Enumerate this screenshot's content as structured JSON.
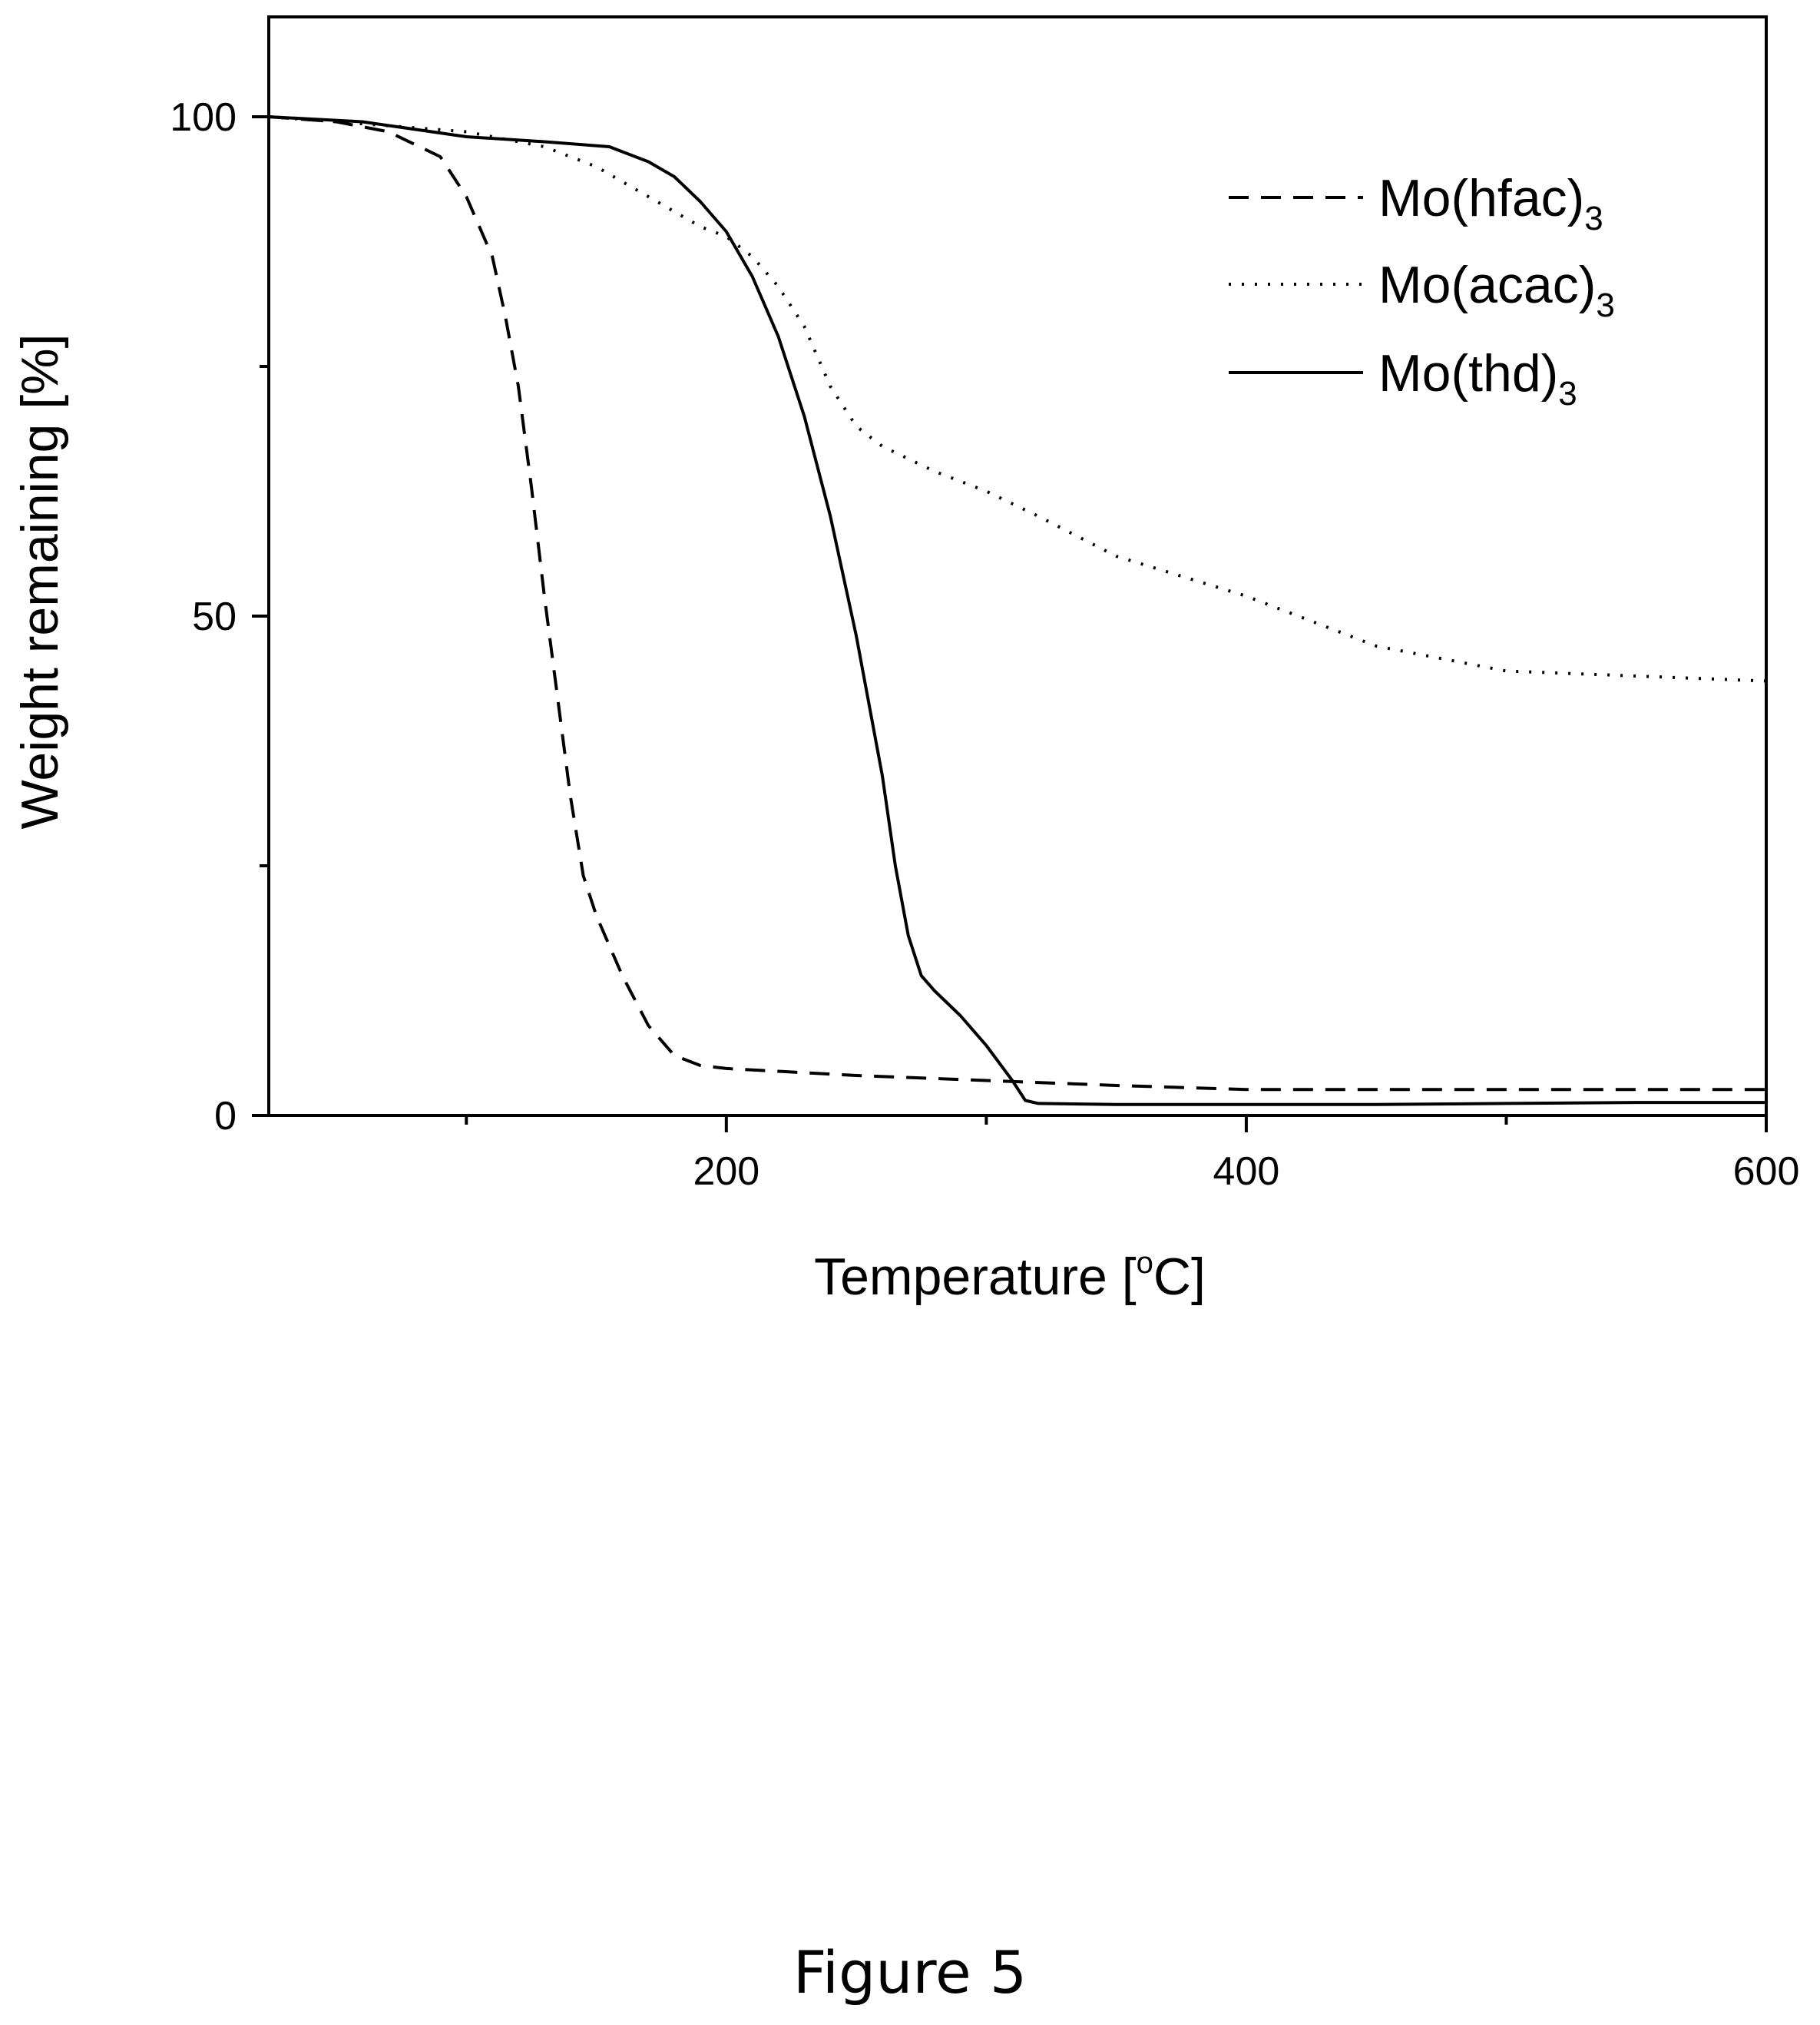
{
  "chart_data": {
    "type": "line",
    "xlabel_main": "Temperature [",
    "xlabel_sup": "o",
    "xlabel_end": "C]",
    "ylabel": "Weight remaining [%]",
    "xlim": [
      24,
      600
    ],
    "ylim": [
      0,
      110
    ],
    "x_ticks": [
      200,
      400,
      600
    ],
    "x_minor_ticks": [
      100,
      300,
      500
    ],
    "y_ticks": [
      0,
      50,
      100
    ],
    "y_minor_ticks": [
      25,
      75
    ],
    "grid": false,
    "legend_position": "top-right",
    "series": [
      {
        "name": "Mo(hfac)",
        "name_sub": "3",
        "style": "dashed",
        "x": [
          24,
          50,
          70,
          90,
          100,
          110,
          115,
          120,
          125,
          130,
          135,
          140,
          145,
          150,
          155,
          160,
          170,
          180,
          185,
          190,
          200,
          250,
          300,
          350,
          400,
          450,
          500,
          550,
          600
        ],
        "y": [
          100,
          99.5,
          98.5,
          96,
          92,
          86,
          80,
          73,
          63,
          52,
          42,
          32,
          24,
          20,
          17,
          14,
          9,
          6,
          5.5,
          5,
          4.7,
          4,
          3.5,
          3,
          2.6,
          2.6,
          2.6,
          2.6,
          2.6
        ]
      },
      {
        "name": "Mo(acac)",
        "name_sub": "3",
        "style": "dotted",
        "x": [
          24,
          50,
          100,
          130,
          150,
          170,
          190,
          200,
          210,
          220,
          230,
          240,
          250,
          260,
          280,
          300,
          320,
          350,
          400,
          450,
          500,
          550,
          600
        ],
        "y": [
          100,
          99.5,
          98.5,
          97,
          95,
          92,
          89,
          88,
          86,
          83,
          79,
          73,
          69,
          67,
          64.5,
          62.5,
          60,
          56,
          52,
          47,
          44.5,
          44,
          43.5
        ]
      },
      {
        "name": "Mo(thd)",
        "name_sub": "3",
        "style": "solid",
        "x": [
          24,
          60,
          100,
          130,
          155,
          170,
          180,
          190,
          200,
          210,
          220,
          230,
          240,
          250,
          260,
          265,
          270,
          275,
          280,
          290,
          300,
          310,
          315,
          320,
          350,
          400,
          450,
          500,
          550,
          600
        ],
        "y": [
          100,
          99.5,
          98,
          97.5,
          97,
          95.5,
          94,
          91.5,
          88.5,
          84,
          78,
          70,
          60,
          48,
          34,
          25,
          18,
          14,
          12.5,
          10,
          7,
          3.5,
          1.5,
          1.2,
          1.1,
          1.1,
          1.1,
          1.2,
          1.3,
          1.3
        ]
      }
    ]
  },
  "caption": "Figure 5"
}
